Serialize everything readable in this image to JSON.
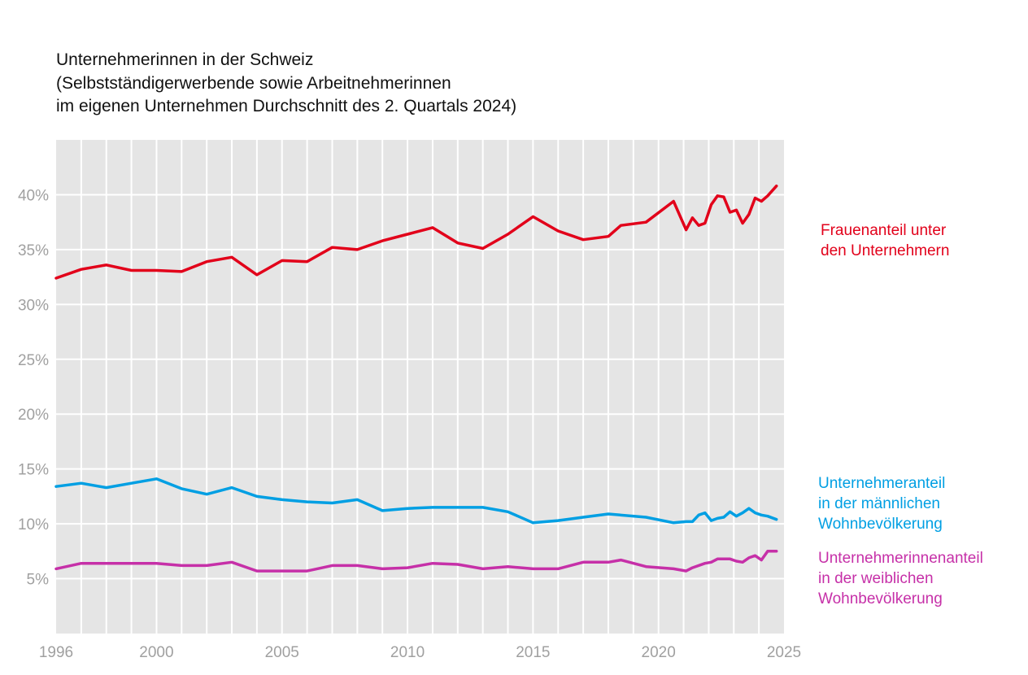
{
  "title_lines": [
    "Unternehmerinnen in der Schweiz",
    "(Selbstständigerwerbende sowie Arbeitnehmerinnen",
    "im eigenen Unternehmen Durchschnitt des 2. Quartals 2024)"
  ],
  "chart_data": {
    "type": "line",
    "title": "Unternehmerinnen in der Schweiz (Selbstständigerwerbende sowie Arbeitnehmerinnen im eigenen Unternehmen Durchschnitt des 2. Quartals 2024)",
    "xlabel": "",
    "ylabel": "",
    "xlim": [
      1996,
      2025
    ],
    "ylim": [
      0,
      45
    ],
    "grid": true,
    "legend": "right, labels at line ends",
    "x_ticks": [
      "1996",
      "2000",
      "2005",
      "2010",
      "2015",
      "2020",
      "2025"
    ],
    "x_tick_values": [
      1996,
      2000,
      2005,
      2010,
      2015,
      2020,
      2025
    ],
    "y_ticks": [
      "5%",
      "10%",
      "15%",
      "20%",
      "25%",
      "30%",
      "35%",
      "40%"
    ],
    "y_tick_values": [
      5,
      10,
      15,
      20,
      25,
      30,
      35,
      40
    ],
    "series": [
      {
        "name": "Frauenanteil unter den Unternehmern",
        "label_lines": [
          "Frauenanteil unter",
          "den Unternehmern"
        ],
        "color": "#e2001a",
        "points": [
          [
            1996,
            32.4
          ],
          [
            1997,
            33.2
          ],
          [
            1998,
            33.6
          ],
          [
            1999,
            33.1
          ],
          [
            2000,
            33.1
          ],
          [
            2001,
            33.0
          ],
          [
            2002,
            33.9
          ],
          [
            2003,
            34.3
          ],
          [
            2004,
            32.7
          ],
          [
            2005,
            34.0
          ],
          [
            2006,
            33.9
          ],
          [
            2007,
            35.2
          ],
          [
            2008,
            35.0
          ],
          [
            2009,
            35.8
          ],
          [
            2010,
            36.4
          ],
          [
            2011,
            37.0
          ],
          [
            2012,
            35.6
          ],
          [
            2013,
            35.1
          ],
          [
            2014,
            36.4
          ],
          [
            2015,
            38.0
          ],
          [
            2016,
            36.7
          ],
          [
            2017,
            35.9
          ],
          [
            2018,
            36.2
          ],
          [
            2018.5,
            37.2
          ],
          [
            2019.5,
            37.5
          ],
          [
            2020.6,
            39.4
          ],
          [
            2021.1,
            36.8
          ],
          [
            2021.35,
            37.9
          ],
          [
            2021.6,
            37.2
          ],
          [
            2021.85,
            37.4
          ],
          [
            2022.1,
            39.1
          ],
          [
            2022.35,
            39.9
          ],
          [
            2022.6,
            39.8
          ],
          [
            2022.85,
            38.4
          ],
          [
            2023.1,
            38.6
          ],
          [
            2023.35,
            37.4
          ],
          [
            2023.6,
            38.2
          ],
          [
            2023.85,
            39.7
          ],
          [
            2024.1,
            39.4
          ],
          [
            2024.35,
            39.9
          ],
          [
            2024.7,
            40.8
          ]
        ]
      },
      {
        "name": "Unternehmeranteil in der männlichen Wohnbevölkerung",
        "label_lines": [
          "Unternehmeranteil",
          "in der männlichen",
          "Wohnbevölkerung"
        ],
        "color": "#009fe3",
        "points": [
          [
            1996,
            13.4
          ],
          [
            1997,
            13.7
          ],
          [
            1998,
            13.3
          ],
          [
            1999,
            13.7
          ],
          [
            2000,
            14.1
          ],
          [
            2001,
            13.2
          ],
          [
            2002,
            12.7
          ],
          [
            2003,
            13.3
          ],
          [
            2004,
            12.5
          ],
          [
            2005,
            12.2
          ],
          [
            2006,
            12.0
          ],
          [
            2007,
            11.9
          ],
          [
            2008,
            12.2
          ],
          [
            2009,
            11.2
          ],
          [
            2010,
            11.4
          ],
          [
            2011,
            11.5
          ],
          [
            2012,
            11.5
          ],
          [
            2013,
            11.5
          ],
          [
            2014,
            11.1
          ],
          [
            2015,
            10.1
          ],
          [
            2016,
            10.3
          ],
          [
            2017,
            10.6
          ],
          [
            2018,
            10.9
          ],
          [
            2019.5,
            10.6
          ],
          [
            2020.6,
            10.1
          ],
          [
            2021.1,
            10.2
          ],
          [
            2021.35,
            10.2
          ],
          [
            2021.6,
            10.8
          ],
          [
            2021.85,
            11.0
          ],
          [
            2022.1,
            10.3
          ],
          [
            2022.35,
            10.5
          ],
          [
            2022.6,
            10.6
          ],
          [
            2022.85,
            11.1
          ],
          [
            2023.1,
            10.7
          ],
          [
            2023.35,
            11.0
          ],
          [
            2023.6,
            11.4
          ],
          [
            2023.85,
            11.0
          ],
          [
            2024.1,
            10.8
          ],
          [
            2024.35,
            10.7
          ],
          [
            2024.7,
            10.4
          ]
        ]
      },
      {
        "name": "Unternehmerinnenanteil in der weiblichen Wohnbevölkerung",
        "label_lines": [
          "Unternehmerinnenanteil",
          "in der weiblichen",
          "Wohnbevölkerung"
        ],
        "color": "#c630a8",
        "points": [
          [
            1996,
            5.9
          ],
          [
            1997,
            6.4
          ],
          [
            1998,
            6.4
          ],
          [
            1999,
            6.4
          ],
          [
            2000,
            6.4
          ],
          [
            2001,
            6.2
          ],
          [
            2002,
            6.2
          ],
          [
            2003,
            6.5
          ],
          [
            2004,
            5.7
          ],
          [
            2005,
            5.7
          ],
          [
            2006,
            5.7
          ],
          [
            2007,
            6.2
          ],
          [
            2008,
            6.2
          ],
          [
            2009,
            5.9
          ],
          [
            2010,
            6.0
          ],
          [
            2011,
            6.4
          ],
          [
            2012,
            6.3
          ],
          [
            2013,
            5.9
          ],
          [
            2014,
            6.1
          ],
          [
            2015,
            5.9
          ],
          [
            2016,
            5.9
          ],
          [
            2017,
            6.5
          ],
          [
            2018,
            6.5
          ],
          [
            2018.5,
            6.7
          ],
          [
            2019.5,
            6.1
          ],
          [
            2020.6,
            5.9
          ],
          [
            2021.1,
            5.7
          ],
          [
            2021.35,
            6.0
          ],
          [
            2021.85,
            6.4
          ],
          [
            2022.1,
            6.5
          ],
          [
            2022.35,
            6.8
          ],
          [
            2022.85,
            6.8
          ],
          [
            2023.1,
            6.6
          ],
          [
            2023.35,
            6.5
          ],
          [
            2023.6,
            6.9
          ],
          [
            2023.85,
            7.1
          ],
          [
            2024.1,
            6.7
          ],
          [
            2024.35,
            7.5
          ],
          [
            2024.7,
            7.5
          ]
        ]
      }
    ]
  }
}
